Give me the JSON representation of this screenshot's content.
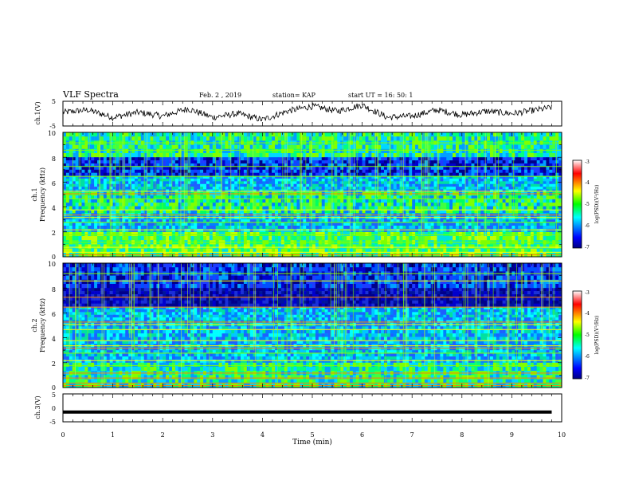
{
  "header": {
    "title": "VLF Spectra",
    "date": "Feb. 2 , 2019",
    "station": "station= KAP",
    "start": "start UT =  16: 50: 1"
  },
  "chart_data": [
    {
      "type": "line",
      "title": "",
      "ylabel": "ch.1(V)",
      "xlim": [
        0,
        10
      ],
      "ylim": [
        -5,
        5
      ],
      "y_ticks": [
        "5",
        "-5"
      ],
      "description_values": {
        "x_min": [
          0,
          0.5,
          1,
          1.5,
          2,
          2.5,
          3,
          3.5,
          4,
          4.5,
          5,
          5.5,
          6,
          6.5,
          7,
          7.5,
          8,
          8.5,
          9,
          9.5,
          9.8
        ],
        "y_V": [
          0.5,
          1.5,
          -1.5,
          0.5,
          -1.0,
          2.0,
          -1.5,
          0.0,
          -2.5,
          1.0,
          3.0,
          1.0,
          3.5,
          -1.5,
          -1.0,
          1.5,
          -0.5,
          1.0,
          0.0,
          1.5,
          2.5
        ]
      }
    },
    {
      "type": "heatmap",
      "ylabel": "Frequency (kHz)",
      "channel_label": "ch.1",
      "xlim": [
        0,
        10
      ],
      "ylim": [
        0,
        10
      ],
      "y_ticks": [
        "0",
        "2",
        "4",
        "6",
        "8",
        "10"
      ],
      "colorbar": {
        "label": "log(PSD)(V²/Hz)",
        "ticks": [
          "-3",
          "-4",
          "-5",
          "-6",
          "-7"
        ],
        "range": [
          -7,
          -3
        ]
      },
      "bands_kHz": [
        {
          "from": 8.0,
          "to": 10.0,
          "level": "medium"
        },
        {
          "from": 6.5,
          "to": 8.0,
          "level": "low"
        },
        {
          "from": 5.2,
          "to": 6.5,
          "level": "mediumlow"
        },
        {
          "from": 3.5,
          "to": 5.2,
          "level": "mediumhigh"
        },
        {
          "from": 2.0,
          "to": 3.5,
          "level": "mediumlow"
        },
        {
          "from": 0.0,
          "to": 2.0,
          "level": "high"
        }
      ]
    },
    {
      "type": "heatmap",
      "ylabel": "Frequency (kHz)",
      "channel_label": "ch.2",
      "xlim": [
        0,
        10
      ],
      "ylim": [
        0,
        10
      ],
      "y_ticks": [
        "0",
        "2",
        "4",
        "6",
        "8",
        "10"
      ],
      "colorbar": {
        "label": "log(PSD)(V²/Hz)",
        "ticks": [
          "-3",
          "-4",
          "-5",
          "-6",
          "-7"
        ],
        "range": [
          -7,
          -3
        ]
      },
      "bands_kHz": [
        {
          "from": 8.0,
          "to": 10.0,
          "level": "low"
        },
        {
          "from": 6.5,
          "to": 8.0,
          "level": "verylow"
        },
        {
          "from": 5.2,
          "to": 6.5,
          "level": "mediumlow"
        },
        {
          "from": 3.5,
          "to": 5.2,
          "level": "mediumlow"
        },
        {
          "from": 2.0,
          "to": 3.5,
          "level": "mediumlow"
        },
        {
          "from": 0.0,
          "to": 2.0,
          "level": "medium"
        }
      ]
    },
    {
      "type": "line",
      "ylabel": "ch.3(V)",
      "xlabel": "Time (min)",
      "xlim": [
        0,
        10
      ],
      "ylim": [
        -5,
        5
      ],
      "y_ticks": [
        "5",
        "0",
        "-5"
      ],
      "x_ticks": [
        "0",
        "1",
        "2",
        "3",
        "4",
        "5",
        "6",
        "7",
        "8",
        "9",
        "10"
      ],
      "description_values": {
        "x_min": [
          0,
          9.8
        ],
        "y_V": [
          -1.5,
          -1.5
        ]
      }
    }
  ],
  "colors": {
    "line": "#000000",
    "axis": "#000000",
    "background": "#ffffff"
  }
}
